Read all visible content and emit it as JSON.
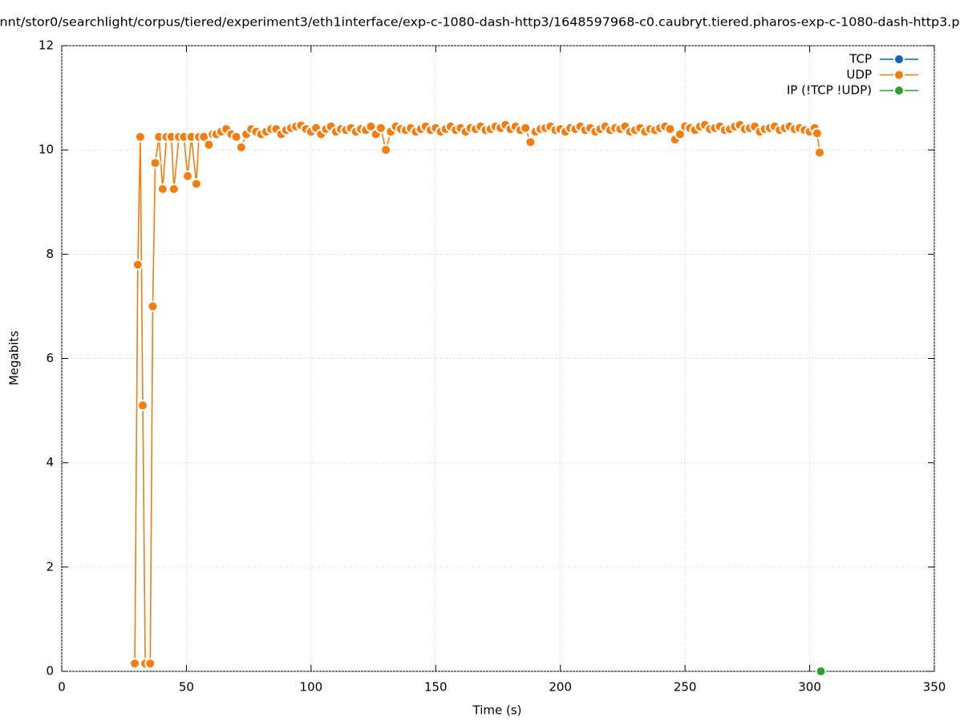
{
  "chart_data": {
    "type": "line",
    "title": "nnt/stor0/searchlight/corpus/tiered/experiment3/eth1interface/exp-c-1080-dash-http3/1648597968-c0.caubryt.tiered.pharos-exp-c-1080-dash-http3.p",
    "x_label": "Time (s)",
    "y_label": "Megabits",
    "xlim": [
      0,
      350
    ],
    "xticks": [
      0,
      50,
      100,
      150,
      200,
      250,
      300,
      350
    ],
    "ylim": [
      0,
      12
    ],
    "yticks": [
      0,
      2,
      4,
      6,
      8,
      10,
      12
    ],
    "grid": true,
    "legend": "top-right",
    "series": [
      {
        "name": "TCP",
        "color": "#0b63b1",
        "x": [],
        "values": []
      },
      {
        "name": "UDP",
        "color": "#f57c0f",
        "x": [
          29.3,
          30.5,
          31.5,
          32.5,
          33.5,
          35.5,
          36.5,
          37.5,
          39,
          40.5,
          42,
          44,
          45,
          47,
          49,
          50.5,
          52,
          54,
          55,
          57,
          59,
          60.5,
          62,
          64,
          66,
          68,
          70,
          72,
          74,
          76,
          78,
          80,
          82,
          84,
          86,
          88,
          90,
          92,
          94,
          96,
          98,
          100,
          102,
          104,
          106,
          108,
          110,
          112,
          114,
          116,
          118,
          120,
          122,
          124,
          126,
          128,
          130,
          132,
          134,
          136,
          138,
          140,
          142,
          144,
          146,
          148,
          150,
          152,
          154,
          156,
          158,
          160,
          162,
          164,
          166,
          168,
          170,
          172,
          174,
          176,
          178,
          180,
          182,
          184,
          186,
          188,
          190,
          192,
          194,
          196,
          198,
          200,
          202,
          204,
          206,
          208,
          210,
          212,
          214,
          216,
          218,
          220,
          222,
          224,
          226,
          228,
          230,
          232,
          234,
          236,
          238,
          240,
          242,
          244,
          246,
          248,
          250,
          252,
          254,
          256,
          258,
          260,
          262,
          264,
          266,
          268,
          270,
          272,
          274,
          276,
          278,
          280,
          282,
          284,
          286,
          288,
          290,
          292,
          294,
          296,
          298,
          300,
          302,
          303,
          304
        ],
        "values": [
          0.15,
          7.8,
          10.25,
          5.1,
          0.15,
          0.15,
          7.0,
          9.75,
          10.25,
          9.25,
          10.25,
          10.25,
          9.25,
          10.25,
          10.25,
          9.5,
          10.25,
          9.35,
          10.25,
          10.25,
          10.1,
          10.3,
          10.3,
          10.35,
          10.4,
          10.3,
          10.25,
          10.05,
          10.3,
          10.4,
          10.35,
          10.3,
          10.35,
          10.4,
          10.4,
          10.3,
          10.38,
          10.42,
          10.45,
          10.47,
          10.4,
          10.35,
          10.42,
          10.3,
          10.4,
          10.45,
          10.35,
          10.4,
          10.38,
          10.42,
          10.35,
          10.4,
          10.38,
          10.45,
          10.3,
          10.42,
          10.0,
          10.35,
          10.45,
          10.4,
          10.38,
          10.42,
          10.35,
          10.4,
          10.45,
          10.38,
          10.42,
          10.35,
          10.4,
          10.45,
          10.38,
          10.42,
          10.35,
          10.42,
          10.4,
          10.45,
          10.38,
          10.4,
          10.45,
          10.42,
          10.48,
          10.4,
          10.45,
          10.38,
          10.42,
          10.15,
          10.35,
          10.4,
          10.42,
          10.45,
          10.38,
          10.4,
          10.35,
          10.42,
          10.4,
          10.45,
          10.38,
          10.42,
          10.35,
          10.4,
          10.45,
          10.38,
          10.42,
          10.4,
          10.45,
          10.35,
          10.38,
          10.42,
          10.35,
          10.4,
          10.38,
          10.42,
          10.45,
          10.4,
          10.2,
          10.3,
          10.45,
          10.42,
          10.38,
          10.45,
          10.48,
          10.4,
          10.42,
          10.45,
          10.38,
          10.4,
          10.45,
          10.48,
          10.4,
          10.42,
          10.45,
          10.35,
          10.4,
          10.42,
          10.45,
          10.38,
          10.42,
          10.45,
          10.4,
          10.42,
          10.38,
          10.35,
          10.42,
          10.32,
          9.95
        ]
      },
      {
        "name": "IP (!TCP  !UDP)",
        "color": "#2ca02c",
        "x": [
          304.5
        ],
        "values": [
          0
        ]
      }
    ]
  }
}
